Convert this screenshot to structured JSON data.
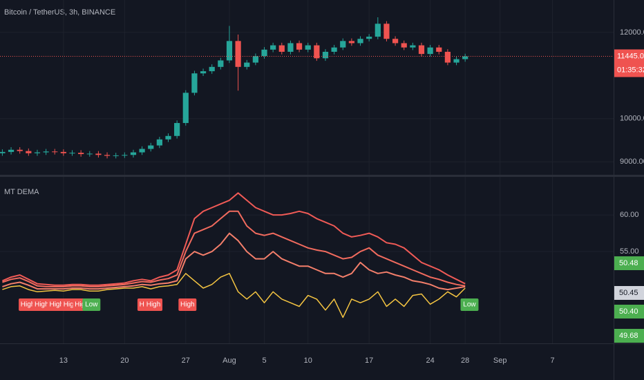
{
  "chart_data": [
    {
      "type": "candlestick",
      "title": "Bitcoin / TetherUS, 3h, BINANCE",
      "grid": true,
      "up_color": "#26a69a",
      "down_color": "#ef5350",
      "x": [
        6,
        7,
        8,
        9,
        10,
        11,
        12,
        13,
        14,
        15,
        16,
        17,
        18,
        19,
        20,
        21,
        22,
        23,
        24,
        25,
        26,
        27,
        28,
        29,
        30,
        31,
        32,
        33,
        34,
        35,
        36,
        37,
        38,
        39,
        40,
        41,
        42,
        43,
        44,
        45,
        46,
        47,
        48,
        49,
        50,
        51,
        52,
        53,
        54,
        55,
        56,
        57,
        58,
        59
      ],
      "open": [
        9200,
        9230,
        9280,
        9250,
        9200,
        9220,
        9240,
        9230,
        9200,
        9210,
        9180,
        9190,
        9160,
        9140,
        9150,
        9160,
        9220,
        9300,
        9380,
        9520,
        9600,
        9900,
        10600,
        11050,
        11100,
        11200,
        11350,
        11800,
        11200,
        11300,
        11450,
        11600,
        11700,
        11550,
        11750,
        11600,
        11700,
        11400,
        11550,
        11650,
        11800,
        11750,
        11850,
        11900,
        12200,
        11850,
        11750,
        11650,
        11700,
        11500,
        11650,
        11550,
        11300,
        11380
      ],
      "high": [
        9290,
        9340,
        9340,
        9310,
        9280,
        9300,
        9300,
        9290,
        9270,
        9270,
        9250,
        9250,
        9220,
        9210,
        9220,
        9280,
        9360,
        9440,
        9580,
        9660,
        9960,
        10660,
        11110,
        11160,
        11260,
        11410,
        12150,
        11950,
        11360,
        11510,
        11660,
        11760,
        11760,
        11810,
        11810,
        11760,
        11760,
        11610,
        11710,
        11860,
        11860,
        11910,
        11960,
        12350,
        12260,
        11910,
        11810,
        11760,
        11760,
        11710,
        11710,
        11610,
        11440,
        11505
      ],
      "low": [
        9140,
        9170,
        9190,
        9140,
        9140,
        9160,
        9170,
        9140,
        9140,
        9120,
        9120,
        9100,
        9080,
        9080,
        9090,
        9100,
        9160,
        9240,
        9320,
        9460,
        9540,
        9840,
        10540,
        10990,
        11040,
        11140,
        11290,
        10650,
        11140,
        11240,
        11390,
        11540,
        11490,
        11490,
        11540,
        11540,
        11340,
        11340,
        11490,
        11590,
        11690,
        11690,
        11790,
        11840,
        11790,
        11690,
        11590,
        11590,
        11440,
        11440,
        11490,
        11240,
        11240,
        11320
      ],
      "close": [
        9230,
        9280,
        9250,
        9200,
        9220,
        9240,
        9230,
        9200,
        9210,
        9180,
        9190,
        9160,
        9140,
        9150,
        9160,
        9220,
        9300,
        9380,
        9520,
        9600,
        9900,
        10600,
        11050,
        11100,
        11200,
        11350,
        11800,
        11200,
        11300,
        11450,
        11600,
        11700,
        11550,
        11750,
        11600,
        11700,
        11400,
        11550,
        11650,
        11800,
        11750,
        11850,
        11900,
        12200,
        11850,
        11750,
        11650,
        11700,
        11500,
        11650,
        11550,
        11300,
        11380,
        11445
      ],
      "xlim": [
        5.73,
        76.0
      ],
      "xticks": [
        13,
        20,
        27,
        {
          "value": 32,
          "label": "Aug"
        },
        {
          "value": 36,
          "label": "5"
        },
        {
          "value": 41,
          "label": "10"
        },
        {
          "value": 48,
          "label": "17"
        },
        {
          "value": 55,
          "label": "24"
        },
        {
          "value": 59,
          "label": "28"
        },
        {
          "value": 63,
          "label": "Sep"
        },
        {
          "value": 69,
          "label": "7"
        }
      ],
      "ylim": [
        8700,
        12750
      ],
      "yticks": [
        {
          "value": 9000,
          "label": "9000.00"
        },
        {
          "value": 10000,
          "label": "10000.00"
        },
        {
          "value": 12000,
          "label": "12000.00"
        }
      ],
      "last_price": {
        "value": 11445,
        "label": "11445.00"
      },
      "countdown": "01:35:32"
    },
    {
      "type": "line",
      "title": "MT DEMA",
      "grid": true,
      "x": [
        6,
        7,
        8,
        9,
        10,
        11,
        12,
        13,
        14,
        15,
        16,
        17,
        18,
        19,
        20,
        21,
        22,
        23,
        24,
        25,
        26,
        27,
        28,
        29,
        30,
        31,
        32,
        33,
        34,
        35,
        36,
        37,
        38,
        39,
        40,
        41,
        42,
        43,
        44,
        45,
        46,
        47,
        48,
        49,
        50,
        51,
        52,
        53,
        54,
        55,
        56,
        57,
        58,
        59
      ],
      "series": [
        {
          "color": "#f05a56",
          "values": [
            51,
            51.5,
            51.8,
            51.2,
            50.6,
            50.5,
            50.4,
            50.4,
            50.5,
            50.5,
            50.4,
            50.4,
            50.5,
            50.6,
            50.7,
            51,
            51.2,
            51,
            51.5,
            51.8,
            52.5,
            56,
            59.5,
            60.5,
            61,
            61.5,
            62,
            63,
            62,
            61,
            60.5,
            60,
            60,
            60.2,
            60.5,
            60.2,
            59.5,
            59,
            58.5,
            57.5,
            57,
            57.2,
            57.5,
            57,
            56.2,
            56,
            55.5,
            54.5,
            53.5,
            53,
            52.5,
            51.8,
            51.2,
            50.6
          ]
        },
        {
          "color": "#f26b5e",
          "values": [
            50.8,
            51.2,
            51.4,
            50.9,
            50.3,
            50.2,
            50.2,
            50.2,
            50.3,
            50.3,
            50.2,
            50.2,
            50.3,
            50.4,
            50.5,
            50.7,
            50.9,
            50.8,
            51.1,
            51.3,
            51.8,
            55,
            57.5,
            58,
            58.5,
            59.5,
            60.5,
            60.5,
            58.5,
            57.5,
            57.2,
            57.5,
            57,
            56.5,
            56,
            55.5,
            55.2,
            55,
            54.5,
            54,
            54.2,
            55,
            55.5,
            54.5,
            54,
            53.5,
            53,
            52.5,
            52,
            51.5,
            51.2,
            50.8,
            50.5,
            50.3
          ]
        },
        {
          "color": "#f47f6b",
          "values": [
            50.2,
            50.6,
            50.8,
            50.4,
            49.9,
            49.9,
            49.9,
            49.9,
            50,
            50,
            49.9,
            49.9,
            50,
            50.1,
            50.2,
            50.3,
            50.5,
            50.4,
            50.6,
            50.7,
            51,
            54,
            55,
            54.5,
            55,
            56,
            57.5,
            56.5,
            55,
            54,
            54,
            55,
            54,
            53.5,
            53,
            53,
            52.5,
            52,
            52,
            51.5,
            52,
            53.5,
            52.5,
            52,
            52.2,
            51.8,
            51.5,
            51,
            50.8,
            50.5,
            50,
            49.8,
            50,
            50.2
          ]
        },
        {
          "color": "#f5c542",
          "values": [
            49.8,
            50.2,
            50.3,
            49.8,
            49.5,
            49.6,
            49.7,
            49.6,
            49.8,
            49.8,
            49.6,
            49.6,
            49.8,
            49.9,
            50,
            50,
            50.2,
            49.9,
            50.2,
            50.3,
            50.5,
            52,
            51,
            50,
            50.5,
            51.5,
            52,
            49.5,
            48.5,
            49.5,
            48,
            49.5,
            48.5,
            48,
            47.5,
            49,
            48.5,
            47,
            48.5,
            46,
            48.5,
            48,
            48.5,
            49.5,
            47.5,
            48.5,
            47.5,
            49,
            49.2,
            47.8,
            48.5,
            49.5,
            48.8,
            50
          ]
        }
      ],
      "xlim": [
        5.73,
        76.0
      ],
      "ylim": [
        42.45,
        65.2
      ],
      "yticks": [
        {
          "value": 55,
          "label": "55.00"
        },
        {
          "value": 60,
          "label": "60.00"
        }
      ],
      "signals": [
        {
          "x": 8.9,
          "label": "High",
          "color": "#ef5350"
        },
        {
          "x": 10.5,
          "label": "High",
          "color": "#ef5350"
        },
        {
          "x": 12.2,
          "label": "High",
          "color": "#ef5350"
        },
        {
          "x": 13.8,
          "label": "High",
          "color": "#ef5350"
        },
        {
          "x": 15.1,
          "label": "High",
          "color": "#ef5350"
        },
        {
          "x": 16.2,
          "label": "Low",
          "color": "#4caf50"
        },
        {
          "x": 22.5,
          "label": "High",
          "color": "#ef5350"
        },
        {
          "x": 23.3,
          "label": "High",
          "color": "#ef5350"
        },
        {
          "x": 27.2,
          "label": "High",
          "color": "#ef5350"
        },
        {
          "x": 59.5,
          "label": "Low",
          "color": "#4caf50"
        }
      ],
      "price_tags": [
        {
          "value": 50.48,
          "label": "50.48",
          "color": "#4caf50"
        },
        {
          "value": 50.45,
          "label": "50.45",
          "color": "#d1d4dc"
        },
        {
          "value": 50.4,
          "label": "50.40",
          "color": "#4caf50"
        },
        {
          "value": 49.68,
          "label": "49.68",
          "color": "#4caf50"
        }
      ]
    }
  ]
}
